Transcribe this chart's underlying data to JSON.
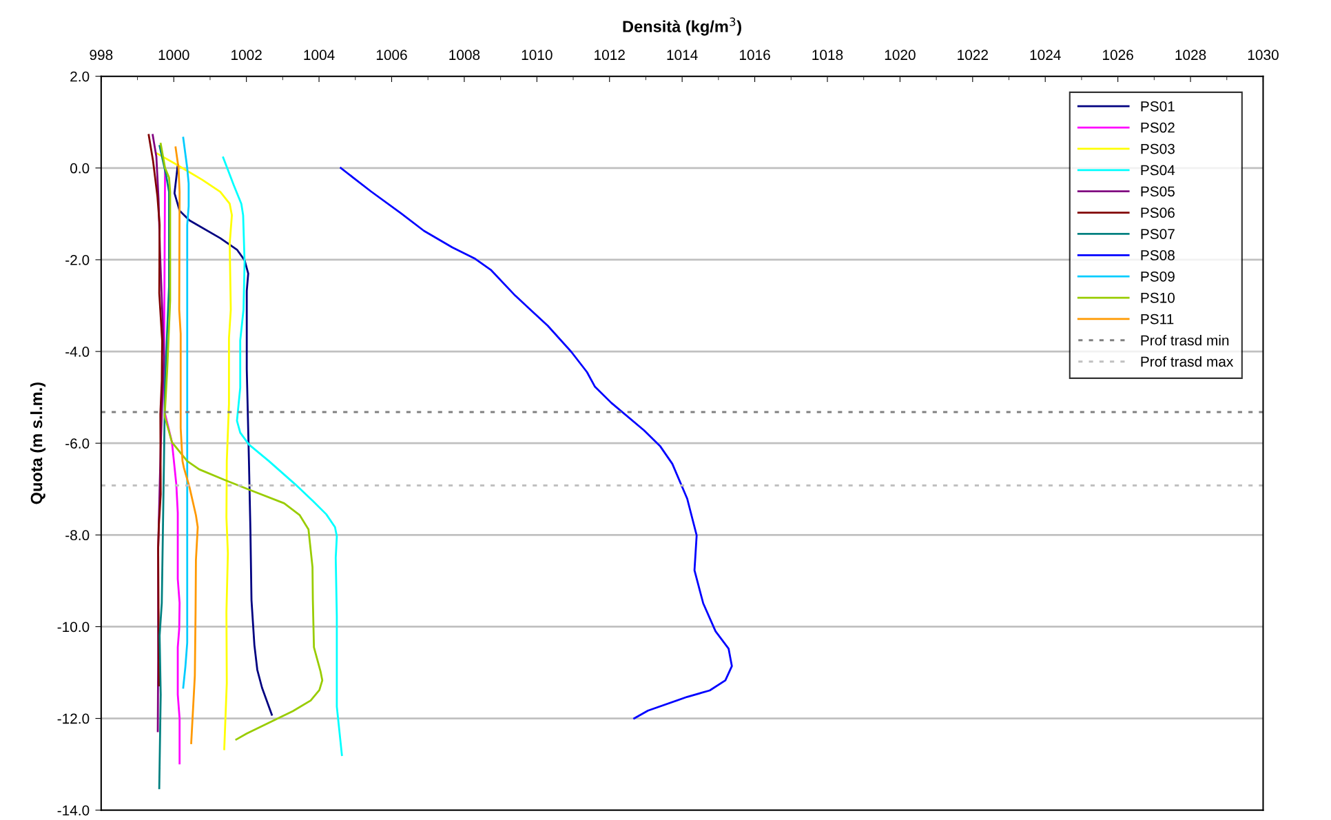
{
  "chart_data": {
    "type": "line",
    "title": "Densità (kg/m$^{3}$)",
    "ylabel": "Quota (m s.l.m.)",
    "xlim": [
      998,
      1030
    ],
    "xticks": [
      998,
      1000,
      1002,
      1004,
      1006,
      1008,
      1010,
      1012,
      1014,
      1016,
      1018,
      1020,
      1022,
      1024,
      1026,
      1028,
      1030
    ],
    "ylim": [
      -14,
      2
    ],
    "yticks": [
      {
        "value": 2,
        "label": "2.0"
      },
      {
        "value": 0,
        "label": "0.0"
      },
      {
        "value": -2,
        "label": "-2.0"
      },
      {
        "value": -4,
        "label": "-4.0"
      },
      {
        "value": -6,
        "label": "-6.0"
      },
      {
        "value": -8,
        "label": "-8.0"
      },
      {
        "value": -10,
        "label": "-10.0"
      },
      {
        "value": -12,
        "label": "-12.0"
      },
      {
        "value": -14,
        "label": "-14.0"
      }
    ],
    "grid": "y",
    "legend": "top right",
    "marker": "none",
    "line_style": "solid",
    "series": [
      {
        "name": "PS01",
        "color": "#000080",
        "x": [
          1000.11,
          1000.02,
          1000.16,
          1000.43,
          1001.28,
          1001.74,
          1001.95,
          1002.05,
          1002.01,
          1002.01,
          1002.07,
          1002.11,
          1002.14,
          1002.22,
          1002.3,
          1002.43,
          1002.7
        ],
        "values": [
          0.07,
          -0.55,
          -0.93,
          -1.14,
          -1.53,
          -1.78,
          -2.01,
          -2.3,
          -2.68,
          -4.38,
          -6.39,
          -7.88,
          -9.42,
          -10.4,
          -10.94,
          -11.33,
          -11.92
        ]
      },
      {
        "name": "PS02",
        "color": "#ff00ff",
        "x": [
          999.76,
          999.73,
          999.76,
          999.95,
          1000.07,
          1000.11,
          1000.11,
          1000.16,
          1000.15,
          1000.11,
          1000.11,
          1000.16,
          1000.16
        ],
        "values": [
          0.0,
          -4.64,
          -5.36,
          -5.98,
          -6.9,
          -7.52,
          -8.96,
          -9.48,
          -10.04,
          -10.45,
          -11.48,
          -12.0,
          -12.98
        ]
      },
      {
        "name": "PS03",
        "color": "#ffff00",
        "x": [
          999.51,
          1000.13,
          1000.79,
          1001.28,
          1001.54,
          1001.6,
          1001.54,
          1001.57,
          1001.52,
          1001.52,
          1001.46,
          1001.45,
          1001.49,
          1001.45,
          1001.46,
          1001.39
        ],
        "values": [
          0.33,
          0.05,
          -0.26,
          -0.52,
          -0.78,
          -1.03,
          -1.65,
          -3.09,
          -3.71,
          -5.15,
          -6.39,
          -7.62,
          -8.4,
          -9.68,
          -11.23,
          -12.67
        ]
      },
      {
        "name": "PS04",
        "color": "#00ffff",
        "x": [
          1001.36,
          1001.65,
          1001.86,
          1001.91,
          1001.95,
          1001.92,
          1001.83,
          1001.83,
          1001.74,
          1001.83,
          1002.07,
          1002.62,
          1003.35,
          1003.83,
          1004.2,
          1004.44,
          1004.49,
          1004.46,
          1004.49,
          1004.49,
          1004.63
        ],
        "values": [
          0.23,
          -0.37,
          -0.78,
          -1.03,
          -2.06,
          -3.09,
          -3.76,
          -4.79,
          -5.51,
          -5.77,
          -6.03,
          -6.39,
          -6.9,
          -7.26,
          -7.55,
          -7.83,
          -8.03,
          -8.5,
          -9.78,
          -11.74,
          -12.8
        ]
      },
      {
        "name": "PS05",
        "color": "#800080",
        "x": [
          999.42,
          999.52,
          999.58,
          999.62,
          999.69,
          999.73,
          999.67,
          999.64,
          999.57,
          999.57,
          999.56
        ],
        "values": [
          0.72,
          0.25,
          -0.67,
          -1.81,
          -3.25,
          -4.12,
          -5.36,
          -6.08,
          -8.29,
          -10.71,
          -12.28
        ]
      },
      {
        "name": "PS06",
        "color": "#800000",
        "x": [
          999.31,
          999.43,
          999.55,
          999.61,
          999.6,
          999.68,
          999.67,
          999.63,
          999.64,
          999.59,
          999.57,
          999.58,
          999.59
        ],
        "values": [
          0.72,
          0.15,
          -0.62,
          -1.24,
          -2.73,
          -3.76,
          -4.64,
          -5.36,
          -7.11,
          -7.78,
          -8.29,
          -9.68,
          -11.28
        ]
      },
      {
        "name": "PS07",
        "color": "#008080",
        "x": [
          999.61,
          999.79,
          999.87,
          999.87,
          999.76,
          999.73,
          999.67,
          999.61,
          999.64,
          999.6
        ],
        "values": [
          0.48,
          -0.16,
          -0.52,
          -2.58,
          -4.64,
          -6.39,
          -9.48,
          -10.2,
          -11.48,
          -13.52
        ]
      },
      {
        "name": "PS08",
        "color": "#0000ff",
        "x": [
          1004.6,
          1005.43,
          1006.26,
          1006.89,
          1007.67,
          1008.3,
          1008.73,
          1009.4,
          1010.3,
          1010.95,
          1011.38,
          1011.6,
          1012.05,
          1012.95,
          1013.4,
          1013.73,
          1014.14,
          1014.4,
          1014.34,
          1014.58,
          1014.92,
          1015.28,
          1015.37,
          1015.19,
          1014.76,
          1014.14,
          1013.06,
          1012.68
        ],
        "values": [
          0.0,
          -0.51,
          -0.99,
          -1.37,
          -1.73,
          -1.98,
          -2.22,
          -2.78,
          -3.44,
          -4.01,
          -4.45,
          -4.77,
          -5.12,
          -5.72,
          -6.07,
          -6.45,
          -7.21,
          -8.01,
          -8.77,
          -9.49,
          -10.1,
          -10.48,
          -10.86,
          -11.17,
          -11.39,
          -11.53,
          -11.83,
          -12.0
        ]
      },
      {
        "name": "PS09",
        "color": "#00ccff",
        "x": [
          1000.26,
          1000.37,
          1000.41,
          1000.41,
          1000.37,
          1000.37,
          1000.37,
          1000.32,
          1000.26
        ],
        "values": [
          0.66,
          0.0,
          -0.34,
          -0.83,
          -1.24,
          -6.39,
          -10.35,
          -10.87,
          -11.33
        ]
      },
      {
        "name": "PS10",
        "color": "#99cc00",
        "x": [
          999.64,
          999.76,
          999.87,
          999.9,
          999.9,
          999.82,
          999.75,
          999.95,
          1000.37,
          1000.7,
          1001.4,
          1002.07,
          1003.04,
          1003.47,
          1003.71,
          1003.82,
          1003.83,
          1003.86,
          1004.04,
          1004.09,
          1004.01,
          1003.77,
          1003.28,
          1002.01,
          1001.72
        ],
        "values": [
          0.53,
          0.0,
          -0.21,
          -0.52,
          -2.89,
          -4.38,
          -5.41,
          -5.98,
          -6.39,
          -6.57,
          -6.8,
          -7.01,
          -7.31,
          -7.57,
          -7.88,
          -8.7,
          -9.42,
          -10.45,
          -10.97,
          -11.17,
          -11.38,
          -11.61,
          -11.84,
          -12.33,
          -12.46
        ]
      },
      {
        "name": "PS11",
        "color": "#ff9900",
        "x": [
          1000.05,
          1000.13,
          1000.16,
          1000.15,
          1000.19,
          1000.19,
          1000.24,
          1000.28,
          1000.43,
          1000.61,
          1000.66,
          1000.61,
          1000.6,
          1000.58,
          1000.48
        ],
        "values": [
          0.45,
          0.0,
          -0.52,
          -3.09,
          -3.61,
          -5.67,
          -6.39,
          -6.54,
          -6.95,
          -7.57,
          -7.83,
          -8.55,
          -9.68,
          -11.07,
          -12.54
        ]
      }
    ],
    "ref_lines": [
      {
        "axis": "y",
        "value": -5.32,
        "label": "Prof trasd min",
        "color": "#808080",
        "line_style": "dotted"
      },
      {
        "axis": "y",
        "value": -6.92,
        "label": "Prof trasd max",
        "color": "#c0c0c0",
        "line_style": "dotted"
      }
    ]
  }
}
